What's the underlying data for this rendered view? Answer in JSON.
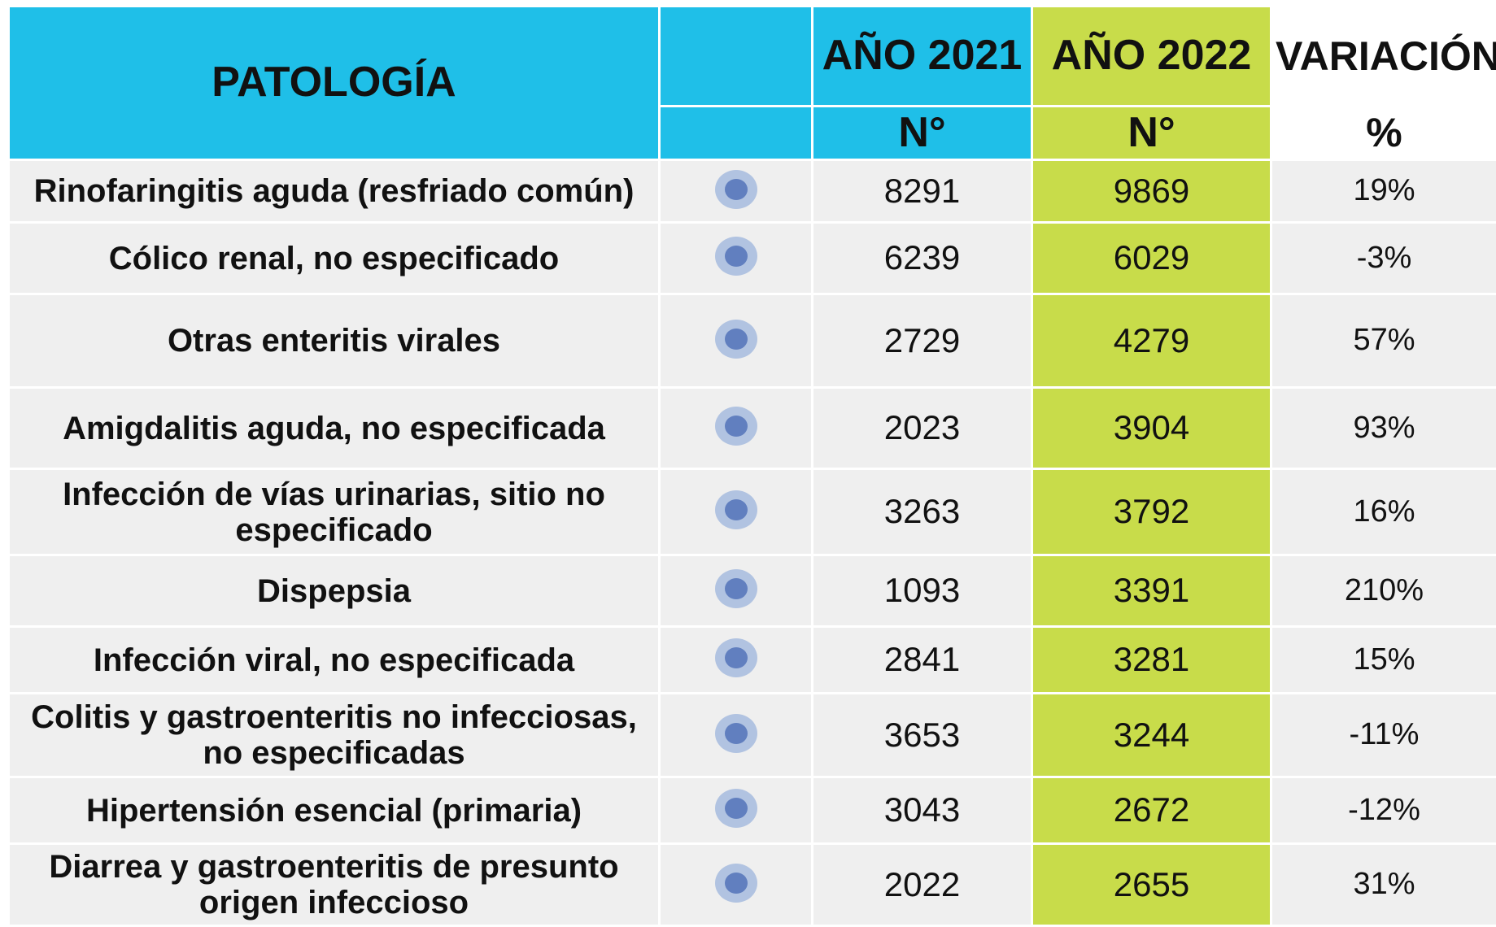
{
  "header": {
    "title": "PATOLOGÍA",
    "year1": "AÑO 2021",
    "year2": "AÑO 2022",
    "variation": "VARIACIÓN",
    "unit1": "N°",
    "unit2": "N°",
    "unit3": "%"
  },
  "table": {
    "rows": [
      [
        "Rinofaringitis aguda (resfriado común)",
        8291,
        9869,
        "19%"
      ],
      [
        "Cólico renal, no especificado",
        6239,
        6029,
        "-3%"
      ],
      [
        "Otras enteritis virales",
        2729,
        4279,
        "57%"
      ],
      [
        "Amigdalitis aguda, no especificada",
        2023,
        3904,
        "93%"
      ],
      [
        "Infección de vías urinarias, sitio no especificado",
        3263,
        3792,
        "16%"
      ],
      [
        "Dispepsia",
        1093,
        3391,
        "210%"
      ],
      [
        "Infección viral, no especificada",
        2841,
        3281,
        "15%"
      ],
      [
        "Colitis y gastroenteritis no infecciosas, no especificadas",
        3653,
        3244,
        "-11%"
      ],
      [
        "Hipertensión esencial (primaria)",
        3043,
        2672,
        "-12%"
      ],
      [
        "Diarrea y gastroenteritis de presunto origen infeccioso",
        2022,
        2655,
        "31%"
      ]
    ]
  }
}
